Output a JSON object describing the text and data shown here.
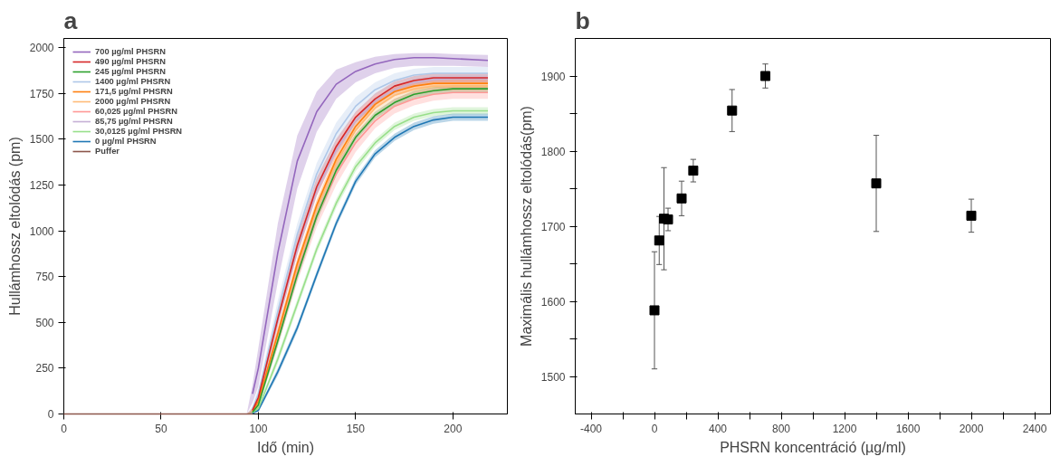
{
  "chart_data": [
    {
      "type": "line",
      "title": "a",
      "xlabel": "Idő (min)",
      "ylabel": "Hullámhossz eltolódás (pm)",
      "xlim": [
        0,
        228
      ],
      "ylim": [
        0,
        2050
      ],
      "xticks": [
        0,
        50,
        100,
        150,
        200
      ],
      "yticks": [
        0,
        250,
        500,
        750,
        1000,
        1250,
        1500,
        1750,
        2000
      ],
      "grid": false,
      "legend": "top left",
      "marker": "none",
      "line_style": "solid",
      "x": [
        0,
        94,
        97,
        100,
        110,
        120,
        130,
        140,
        150,
        160,
        170,
        180,
        190,
        200,
        218
      ],
      "series": [
        {
          "name": "700 µg/ml PHSRN",
          "color": "#9467bd",
          "values": [
            null,
            null,
            110,
            250,
            880,
            1380,
            1650,
            1800,
            1870,
            1910,
            1935,
            1945,
            1945,
            1940,
            1930
          ],
          "lower": [
            0,
            0,
            60,
            150,
            720,
            1230,
            1540,
            1720,
            1810,
            1860,
            1890,
            1900,
            1900,
            1900,
            1895
          ],
          "upper": [
            0,
            0,
            160,
            360,
            1040,
            1520,
            1760,
            1880,
            1920,
            1950,
            1965,
            1970,
            1970,
            1965,
            1960
          ]
        },
        {
          "name": "490 µg/ml PHSRN",
          "color": "#d62728",
          "values": [
            null,
            null,
            20,
            90,
            520,
            920,
            1240,
            1460,
            1620,
            1720,
            1790,
            1820,
            1835,
            1835,
            1835
          ],
          "lower": [
            0,
            0,
            10,
            70,
            480,
            870,
            1190,
            1420,
            1590,
            1690,
            1760,
            1795,
            1810,
            1810,
            1810
          ],
          "upper": [
            0,
            0,
            30,
            110,
            560,
            970,
            1290,
            1500,
            1650,
            1750,
            1815,
            1845,
            1860,
            1860,
            1860
          ]
        },
        {
          "name": "245 µg/ml PHSRN",
          "color": "#2ca02c",
          "values": [
            null,
            null,
            10,
            50,
            400,
            760,
            1080,
            1330,
            1510,
            1630,
            1700,
            1745,
            1765,
            1775,
            1775
          ],
          "lower": [
            0,
            0,
            5,
            35,
            370,
            730,
            1050,
            1300,
            1490,
            1610,
            1680,
            1725,
            1745,
            1755,
            1755
          ],
          "upper": [
            0,
            0,
            15,
            65,
            430,
            790,
            1110,
            1360,
            1530,
            1650,
            1720,
            1765,
            1785,
            1795,
            1795
          ]
        },
        {
          "name": "1400 µg/ml PHSRN",
          "color": "#aec7e8",
          "values": [
            null,
            null,
            30,
            110,
            560,
            980,
            1310,
            1530,
            1680,
            1770,
            1820,
            1850,
            1860,
            1860,
            1860
          ],
          "lower": [
            0,
            0,
            15,
            80,
            500,
            920,
            1250,
            1480,
            1640,
            1740,
            1790,
            1820,
            1830,
            1830,
            1830
          ],
          "upper": [
            0,
            0,
            45,
            140,
            620,
            1040,
            1370,
            1590,
            1730,
            1810,
            1860,
            1885,
            1895,
            1895,
            1895
          ]
        },
        {
          "name": "171,5 µg/ml PHSRN",
          "color": "#ff7f0e",
          "values": [
            null,
            null,
            15,
            70,
            440,
            820,
            1140,
            1390,
            1570,
            1690,
            1760,
            1790,
            1805,
            1805,
            1805
          ],
          "lower": [
            0,
            0,
            8,
            50,
            410,
            790,
            1110,
            1360,
            1540,
            1665,
            1735,
            1765,
            1780,
            1780,
            1780
          ],
          "upper": [
            0,
            0,
            22,
            90,
            470,
            850,
            1170,
            1420,
            1600,
            1715,
            1785,
            1815,
            1830,
            1830,
            1830
          ]
        },
        {
          "name": "2000 µg/ml PHSRN",
          "color": "#ffbb78",
          "values": [
            null,
            null,
            20,
            70,
            430,
            800,
            1120,
            1370,
            1550,
            1670,
            1740,
            1775,
            1790,
            1790,
            1790
          ],
          "lower": [
            0,
            0,
            10,
            50,
            400,
            770,
            1090,
            1340,
            1520,
            1645,
            1715,
            1750,
            1765,
            1765,
            1765
          ],
          "upper": [
            0,
            0,
            30,
            90,
            460,
            830,
            1150,
            1400,
            1580,
            1695,
            1765,
            1800,
            1815,
            1815,
            1815
          ]
        },
        {
          "name": "60,025 µg/ml PHSRN",
          "color": "#ff9896",
          "values": [
            null,
            null,
            15,
            60,
            420,
            780,
            1080,
            1310,
            1480,
            1600,
            1680,
            1720,
            1745,
            1755,
            1755
          ],
          "lower": [
            0,
            0,
            5,
            40,
            370,
            720,
            1020,
            1250,
            1430,
            1560,
            1640,
            1685,
            1710,
            1720,
            1720
          ],
          "upper": [
            0,
            0,
            25,
            80,
            470,
            840,
            1140,
            1370,
            1530,
            1640,
            1720,
            1760,
            1780,
            1790,
            1790
          ]
        },
        {
          "name": "85,75 µg/ml PHSRN",
          "color": "#c5b0d5",
          "values": [
            null,
            null,
            25,
            90,
            510,
            900,
            1220,
            1440,
            1600,
            1710,
            1770,
            1810,
            1825,
            1830,
            1830
          ],
          "lower": [
            0,
            0,
            15,
            70,
            480,
            870,
            1190,
            1410,
            1575,
            1690,
            1750,
            1790,
            1805,
            1810,
            1810
          ],
          "upper": [
            0,
            0,
            35,
            110,
            540,
            930,
            1250,
            1470,
            1625,
            1730,
            1790,
            1830,
            1845,
            1850,
            1850
          ]
        },
        {
          "name": "30,0125 µg/ml PHSRN",
          "color": "#98df8a",
          "values": [
            null,
            null,
            8,
            30,
            300,
            600,
            900,
            1150,
            1350,
            1480,
            1570,
            1620,
            1645,
            1655,
            1655
          ],
          "lower": [
            0,
            0,
            3,
            20,
            275,
            575,
            875,
            1125,
            1325,
            1460,
            1550,
            1600,
            1625,
            1635,
            1635
          ],
          "upper": [
            0,
            0,
            13,
            40,
            325,
            625,
            925,
            1175,
            1375,
            1500,
            1590,
            1640,
            1665,
            1675,
            1675
          ]
        },
        {
          "name": "0 µg/ml PHSRN",
          "color": "#1f77b4",
          "values": [
            null,
            null,
            5,
            20,
            230,
            470,
            760,
            1040,
            1270,
            1420,
            1510,
            1570,
            1605,
            1620,
            1620
          ],
          "lower": [
            0,
            0,
            2,
            10,
            210,
            450,
            740,
            1020,
            1250,
            1400,
            1490,
            1550,
            1585,
            1600,
            1600
          ],
          "upper": [
            0,
            0,
            8,
            30,
            250,
            490,
            780,
            1060,
            1290,
            1440,
            1530,
            1590,
            1625,
            1640,
            1640
          ]
        },
        {
          "name": "Puffer",
          "color": "#8c564b",
          "x": [
            0,
            97
          ],
          "values": [
            0,
            0
          ]
        }
      ]
    },
    {
      "type": "scatter",
      "title": "b",
      "xlabel": "PHSRN koncentráció (µg/ml)",
      "ylabel": "Maximális hullámhossz eltolódás(pm)",
      "xlim": [
        -500,
        2500
      ],
      "ylim": [
        1450,
        1950
      ],
      "xticks": [
        -400,
        {
          "value": -200,
          "label": null
        },
        0,
        {
          "value": 200,
          "label": null
        },
        400,
        {
          "value": 600,
          "label": null
        },
        800,
        {
          "value": 1000,
          "label": null
        },
        1200,
        {
          "value": 1400,
          "label": null
        },
        1600,
        {
          "value": 1800,
          "label": null
        },
        2000,
        {
          "value": 2200,
          "label": null
        },
        2400
      ],
      "yticks": [
        1500,
        {
          "value": 1550,
          "label": null
        },
        1600,
        {
          "value": 1650,
          "label": null
        },
        1700,
        {
          "value": 1750,
          "label": null
        },
        1800,
        {
          "value": 1850,
          "label": null
        },
        1900
      ],
      "grid": false,
      "legend": false,
      "marker": "square",
      "x": [
        0,
        30.0125,
        60.025,
        85.75,
        171.5,
        245,
        490,
        700,
        1400,
        2000
      ],
      "series": [
        {
          "color": "#000000",
          "values": [
            1588,
            1681,
            1710,
            1709,
            1737,
            1774,
            1854,
            1900,
            1757,
            1714
          ],
          "errors": [
            78,
            32,
            68,
            15,
            23,
            15,
            28,
            16,
            64,
            22
          ]
        }
      ]
    }
  ]
}
